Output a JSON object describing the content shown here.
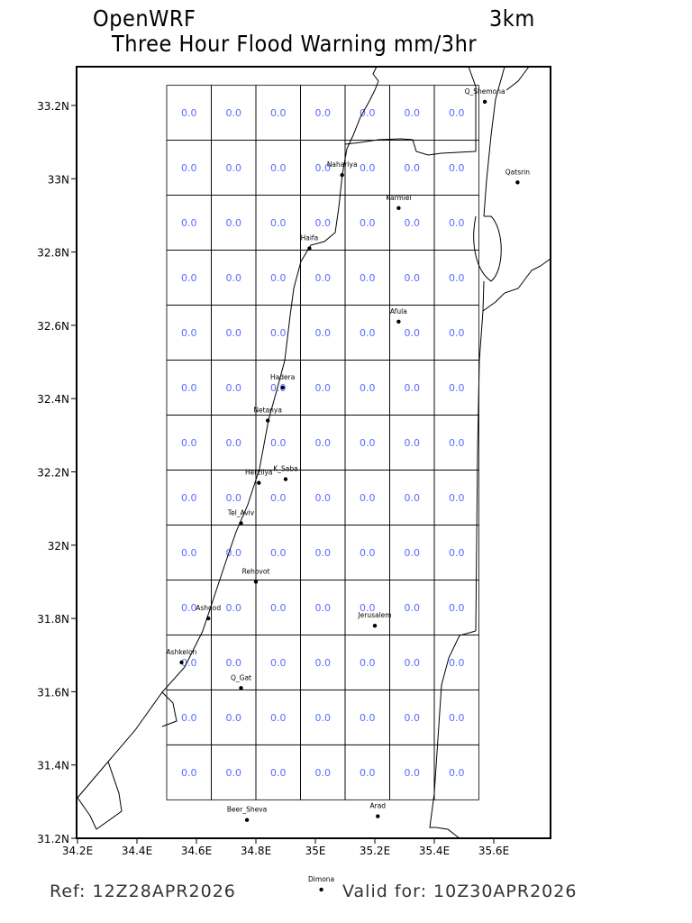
{
  "header": {
    "model": "OpenWRF",
    "resolution": "3km",
    "title": "Three Hour Flood Warning mm/3hr"
  },
  "footer": {
    "ref": "Ref: 12Z28APR2026",
    "valid": "Valid for: 10Z30APR2026"
  },
  "map": {
    "lon_range": [
      34.2,
      35.79
    ],
    "lat_range": [
      31.2,
      33.31
    ],
    "lon_ticks": [
      {
        "value": 34.2,
        "label": "34.2E"
      },
      {
        "value": 34.4,
        "label": "34.4E"
      },
      {
        "value": 34.6,
        "label": "34.6E"
      },
      {
        "value": 34.8,
        "label": "34.8E"
      },
      {
        "value": 35.0,
        "label": "35E"
      },
      {
        "value": 35.2,
        "label": "35.2E"
      },
      {
        "value": 35.4,
        "label": "35.4E"
      },
      {
        "value": 35.6,
        "label": "35.6E"
      }
    ],
    "lat_ticks": [
      {
        "value": 31.2,
        "label": "31.2N"
      },
      {
        "value": 31.4,
        "label": "31.4N"
      },
      {
        "value": 31.6,
        "label": "31.6N"
      },
      {
        "value": 31.8,
        "label": "31.8N"
      },
      {
        "value": 32.0,
        "label": "32N"
      },
      {
        "value": 32.2,
        "label": "32.2N"
      },
      {
        "value": 32.4,
        "label": "32.4N"
      },
      {
        "value": 32.6,
        "label": "32.6N"
      },
      {
        "value": 32.8,
        "label": "32.8N"
      },
      {
        "value": 33.0,
        "label": "33N"
      },
      {
        "value": 33.2,
        "label": "33.2N"
      }
    ],
    "grid": {
      "lon_start": 34.5,
      "lat_top": 33.255,
      "step": 0.15,
      "cols": 7,
      "rows": 13,
      "value_label": "0.0",
      "value_color": "#5a6cff"
    },
    "cities": [
      {
        "name": "Q_Shemona",
        "lon": 35.57,
        "lat": 33.21
      },
      {
        "name": "Qatsrin",
        "lon": 35.68,
        "lat": 32.99
      },
      {
        "name": "Nahariya",
        "lon": 35.09,
        "lat": 33.01
      },
      {
        "name": "Karmiel",
        "lon": 35.28,
        "lat": 32.92
      },
      {
        "name": "Haifa",
        "lon": 34.98,
        "lat": 32.81
      },
      {
        "name": "Afula",
        "lon": 35.28,
        "lat": 32.61
      },
      {
        "name": "Hadera",
        "lon": 34.89,
        "lat": 32.43
      },
      {
        "name": "Netanya",
        "lon": 34.84,
        "lat": 32.34
      },
      {
        "name": "Herzliya",
        "lon": 34.81,
        "lat": 32.17
      },
      {
        "name": "K_Saba",
        "lon": 34.9,
        "lat": 32.18
      },
      {
        "name": "Tel_Aviv",
        "lon": 34.75,
        "lat": 32.06
      },
      {
        "name": "Rehovot",
        "lon": 34.8,
        "lat": 31.9
      },
      {
        "name": "Ashdod",
        "lon": 34.64,
        "lat": 31.8
      },
      {
        "name": "Jerusalem",
        "lon": 35.2,
        "lat": 31.78
      },
      {
        "name": "Ashkelon",
        "lon": 34.55,
        "lat": 31.68
      },
      {
        "name": "Q_Gat",
        "lon": 34.75,
        "lat": 31.61
      },
      {
        "name": "Beer_Sheva",
        "lon": 34.77,
        "lat": 31.25
      },
      {
        "name": "Arad",
        "lon": 35.21,
        "lat": 31.26
      },
      {
        "name": "Dimona",
        "lon": 35.02,
        "lat": 31.06
      }
    ]
  }
}
